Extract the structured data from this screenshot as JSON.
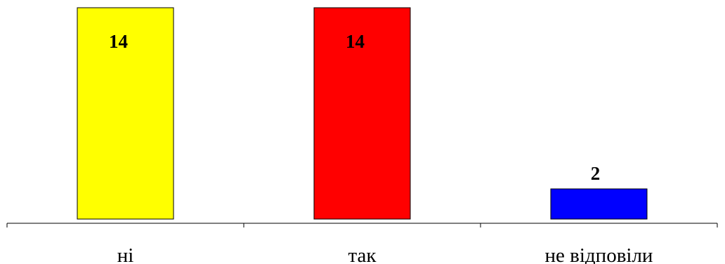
{
  "chart_data": {
    "type": "bar",
    "categories": [
      "ні",
      "так",
      "не відповіли"
    ],
    "values": [
      14,
      14,
      2
    ],
    "colors": [
      "#ffff00",
      "#ff0000",
      "#0000ff"
    ],
    "data_labels": [
      "14",
      "14",
      "2"
    ],
    "ylim": [
      0,
      14
    ],
    "grid": false,
    "legend": "none",
    "title": "",
    "xlabel": "",
    "ylabel": ""
  }
}
